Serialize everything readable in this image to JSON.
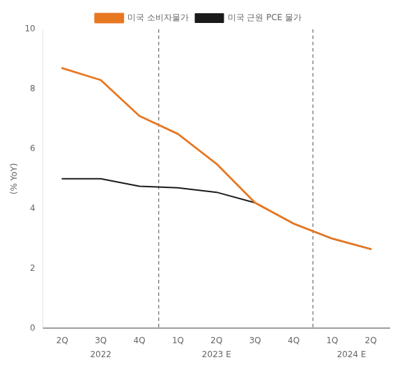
{
  "chart_data": {
    "type": "line",
    "ylabel": "(% YoY)",
    "categories": [
      "2Q",
      "3Q",
      "4Q",
      "1Q",
      "2Q",
      "3Q",
      "4Q",
      "1Q",
      "2Q"
    ],
    "series": [
      {
        "name": "미국 소비자물가",
        "color": "#E87722",
        "values": [
          8.7,
          8.3,
          7.1,
          6.5,
          5.5,
          4.2,
          3.5,
          3.0,
          2.65
        ]
      },
      {
        "name": "미국 근원 PCE 물가",
        "color": "#1a1a1a",
        "values": [
          5.0,
          5.0,
          4.75,
          4.7,
          4.55,
          4.2,
          3.5,
          3.0,
          2.65
        ]
      }
    ],
    "annotations": [
      {
        "text": "2022",
        "x": 1.0
      },
      {
        "text": "2023 E",
        "x": 4.0
      },
      {
        "text": "2024 E",
        "x": 7.5
      },
      {
        "x": 2.5,
        "line_style": "dashed",
        "color": "#888888"
      },
      {
        "x": 6.5,
        "line_style": "dashed",
        "color": "#888888"
      },
      {
        "y": 0,
        "color": "#111111"
      }
    ],
    "ylim": [
      0,
      10
    ],
    "yticks": [
      0,
      2,
      4,
      6,
      8,
      10
    ],
    "grid": false,
    "legend": "top",
    "background_color": "#ffffff"
  }
}
